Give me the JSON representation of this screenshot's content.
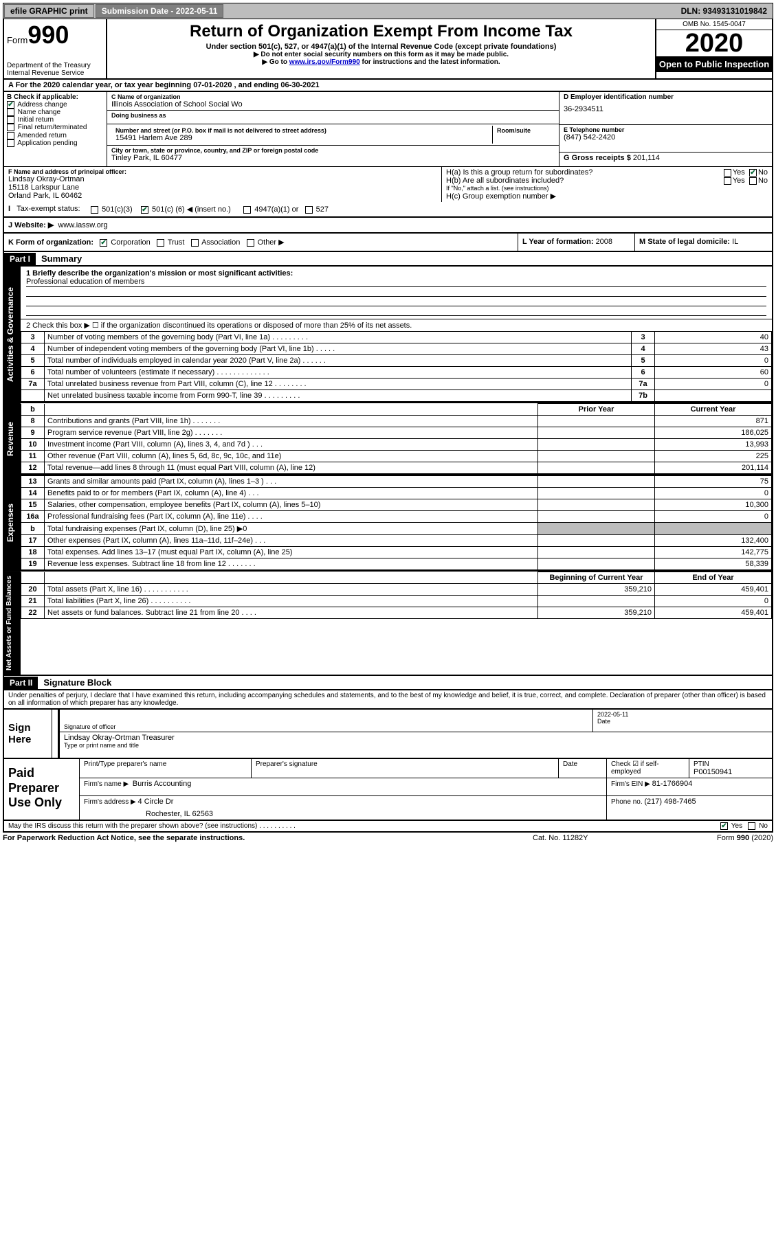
{
  "topbar": {
    "efile": "efile GRAPHIC print",
    "submission_label": "Submission Date - 2022-05-11",
    "dln": "DLN: 93493131019842"
  },
  "header": {
    "form_label": "Form",
    "form_number": "990",
    "dept": "Department of the Treasury\nInternal Revenue Service",
    "title": "Return of Organization Exempt From Income Tax",
    "sub1": "Under section 501(c), 527, or 4947(a)(1) of the Internal Revenue Code (except private foundations)",
    "sub2": "▶ Do not enter social security numbers on this form as it may be made public.",
    "sub3_pre": "▶ Go to ",
    "sub3_link": "www.irs.gov/Form990",
    "sub3_post": " for instructions and the latest information.",
    "omb": "OMB No. 1545-0047",
    "year": "2020",
    "open": "Open to Public Inspection"
  },
  "row_a": "A For the 2020 calendar year, or tax year beginning 07-01-2020     , and ending 06-30-2021",
  "box_b": {
    "label": "B Check if applicable:",
    "items": [
      {
        "label": "Address change",
        "checked": true
      },
      {
        "label": "Name change",
        "checked": false
      },
      {
        "label": "Initial return",
        "checked": false
      },
      {
        "label": "Final return/terminated",
        "checked": false
      },
      {
        "label": "Amended return",
        "checked": false
      },
      {
        "label": "Application pending",
        "checked": false
      }
    ]
  },
  "box_c": {
    "name_lab": "C Name of organization",
    "name": "Illinois Association of School Social Wo",
    "dba_lab": "Doing business as",
    "dba": "",
    "addr_lab": "Number and street (or P.O. box if mail is not delivered to street address)",
    "room_lab": "Room/suite",
    "addr": "15491 Harlem Ave 289",
    "city_lab": "City or town, state or province, country, and ZIP or foreign postal code",
    "city": "Tinley Park, IL  60477"
  },
  "box_d": {
    "lab": "D Employer identification number",
    "val": "36-2934511"
  },
  "box_e": {
    "lab": "E Telephone number",
    "val": "(847) 542-2420"
  },
  "box_g": {
    "lab": "G Gross receipts $ ",
    "val": "201,114"
  },
  "box_f": {
    "lab": "F  Name and address of principal officer:",
    "name": "Lindsay Okray-Ortman",
    "addr1": "15118 Larkspur Lane",
    "addr2": "Orland Park, IL  60462"
  },
  "box_h": {
    "ha": "H(a)  Is this a group return for subordinates?",
    "hb": "H(b)  Are all subordinates included?",
    "hb_note": "If \"No,\" attach a list. (see instructions)",
    "hc": "H(c)  Group exemption number ▶",
    "yes": "Yes",
    "no": "No"
  },
  "tax_status": {
    "lab": "Tax-exempt status:",
    "c3": "501(c)(3)",
    "c_other_pre": "501(c) (",
    "c_other_val": "6",
    "c_other_post": ") ◀ (insert no.)",
    "a4947": "4947(a)(1) or",
    "s527": "527"
  },
  "website": {
    "lab": "J   Website: ▶",
    "val": "www.iassw.org"
  },
  "korg": {
    "k_lab": "K Form of organization:",
    "corp": "Corporation",
    "trust": "Trust",
    "assoc": "Association",
    "other": "Other ▶",
    "l_lab": "L Year of formation: ",
    "l_val": "2008",
    "m_lab": "M State of legal domicile: ",
    "m_val": "IL"
  },
  "part1": {
    "hdr": "Part I",
    "title": "Summary",
    "vlabel_gov": "Activities & Governance",
    "vlabel_rev": "Revenue",
    "vlabel_exp": "Expenses",
    "vlabel_net": "Net Assets or Fund Balances",
    "q1_lab": "1  Briefly describe the organization's mission or most significant activities:",
    "q1_val": "Professional education of members",
    "q2": "2    Check this box ▶ ☐  if the organization discontinued its operations or disposed of more than 25% of its net assets.",
    "rows_top": [
      {
        "n": "3",
        "desc": "Number of voting members of the governing body (Part VI, line 1a)   .    .    .    .    .    .    .    .    .",
        "box": "3",
        "val": "40"
      },
      {
        "n": "4",
        "desc": "Number of independent voting members of the governing body (Part VI, line 1b)   .    .    .    .    .",
        "box": "4",
        "val": "43"
      },
      {
        "n": "5",
        "desc": "Total number of individuals employed in calendar year 2020 (Part V, line 2a)   .    .    .    .    .    .",
        "box": "5",
        "val": "0"
      },
      {
        "n": "6",
        "desc": "Total number of volunteers (estimate if necessary)   .    .    .    .    .    .    .    .    .    .    .    .    .",
        "box": "6",
        "val": "60"
      },
      {
        "n": "7a",
        "desc": "Total unrelated business revenue from Part VIII, column (C), line 12   .    .    .    .    .    .    .    .",
        "box": "7a",
        "val": "0"
      },
      {
        "n": "",
        "desc": "Net unrelated business taxable income from Form 990-T, line 39   .    .    .    .    .    .    .    .    .",
        "box": "7b",
        "val": ""
      }
    ],
    "col_prior": "Prior Year",
    "col_current": "Current Year",
    "rows_rev": [
      {
        "n": "8",
        "desc": "Contributions and grants (Part VIII, line 1h)   .    .    .    .    .    .    .",
        "prior": "",
        "curr": "871"
      },
      {
        "n": "9",
        "desc": "Program service revenue (Part VIII, line 2g)   .    .    .    .    .    .    .",
        "prior": "",
        "curr": "186,025"
      },
      {
        "n": "10",
        "desc": "Investment income (Part VIII, column (A), lines 3, 4, and 7d )   .    .    .",
        "prior": "",
        "curr": "13,993"
      },
      {
        "n": "11",
        "desc": "Other revenue (Part VIII, column (A), lines 5, 6d, 8c, 9c, 10c, and 11e)",
        "prior": "",
        "curr": "225"
      },
      {
        "n": "12",
        "desc": "Total revenue—add lines 8 through 11 (must equal Part VIII, column (A), line 12)",
        "prior": "",
        "curr": "201,114"
      }
    ],
    "rows_exp": [
      {
        "n": "13",
        "desc": "Grants and similar amounts paid (Part IX, column (A), lines 1–3 )   .    .    .",
        "prior": "",
        "curr": "75"
      },
      {
        "n": "14",
        "desc": "Benefits paid to or for members (Part IX, column (A), line 4)   .    .    .",
        "prior": "",
        "curr": "0"
      },
      {
        "n": "15",
        "desc": "Salaries, other compensation, employee benefits (Part IX, column (A), lines 5–10)",
        "prior": "",
        "curr": "10,300"
      },
      {
        "n": "16a",
        "desc": "Professional fundraising fees (Part IX, column (A), line 11e)   .    .    .    .",
        "prior": "",
        "curr": "0"
      },
      {
        "n": "b",
        "desc": "Total fundraising expenses (Part IX, column (D), line 25) ▶0",
        "prior": "grey",
        "curr": "grey"
      },
      {
        "n": "17",
        "desc": "Other expenses (Part IX, column (A), lines 11a–11d, 11f–24e)   .    .    .",
        "prior": "",
        "curr": "132,400"
      },
      {
        "n": "18",
        "desc": "Total expenses. Add lines 13–17 (must equal Part IX, column (A), line 25)",
        "prior": "",
        "curr": "142,775"
      },
      {
        "n": "19",
        "desc": "Revenue less expenses. Subtract line 18 from line 12   .    .    .    .    .    .    .",
        "prior": "",
        "curr": "58,339"
      }
    ],
    "col_begin": "Beginning of Current Year",
    "col_end": "End of Year",
    "rows_net": [
      {
        "n": "20",
        "desc": "Total assets (Part X, line 16)   .    .    .    .    .    .    .    .    .    .    .",
        "prior": "359,210",
        "curr": "459,401"
      },
      {
        "n": "21",
        "desc": "Total liabilities (Part X, line 26)   .    .    .    .    .    .    .    .    .    .",
        "prior": "",
        "curr": "0"
      },
      {
        "n": "22",
        "desc": "Net assets or fund balances. Subtract line 21 from line 20   .    .    .    .",
        "prior": "359,210",
        "curr": "459,401"
      }
    ]
  },
  "part2": {
    "hdr": "Part II",
    "title": "Signature Block",
    "decl": "Under penalties of perjury, I declare that I have examined this return, including accompanying schedules and statements, and to the best of my knowledge and belief, it is true, correct, and complete. Declaration of preparer (other than officer) is based on all information of which preparer has any knowledge."
  },
  "sign": {
    "side": "Sign Here",
    "sig_lab": "Signature of officer",
    "date_lab": "Date",
    "date_val": "2022-05-11",
    "name": "Lindsay Okray-Ortman  Treasurer",
    "name_lab": "Type or print name and title"
  },
  "paid": {
    "side": "Paid Preparer Use Only",
    "h_name": "Print/Type preparer's name",
    "h_sig": "Preparer's signature",
    "h_date": "Date",
    "h_check": "Check ☑ if self-employed",
    "h_ptin_lab": "PTIN",
    "h_ptin": "P00150941",
    "firm_lab": "Firm's name      ▶",
    "firm": "Burris Accounting",
    "ein_lab": "Firm's EIN ▶",
    "ein": "81-1766904",
    "addr_lab": "Firm's address ▶",
    "addr1": "4 Circle Dr",
    "addr2": "Rochester, IL  62563",
    "phone_lab": "Phone no. ",
    "phone": "(217) 498-7465"
  },
  "discuss": {
    "q": "May the IRS discuss this return with the preparer shown above? (see instructions)   .    .    .    .    .    .    .    .    .    .",
    "yes": "Yes",
    "no": "No"
  },
  "bottom": {
    "left": "For Paperwork Reduction Act Notice, see the separate instructions.",
    "mid": "Cat. No. 11282Y",
    "right": "Form 990 (2020)"
  },
  "colors": {
    "grey": "#bdbdbd",
    "black": "#000000",
    "check": "#0a6b3a"
  }
}
